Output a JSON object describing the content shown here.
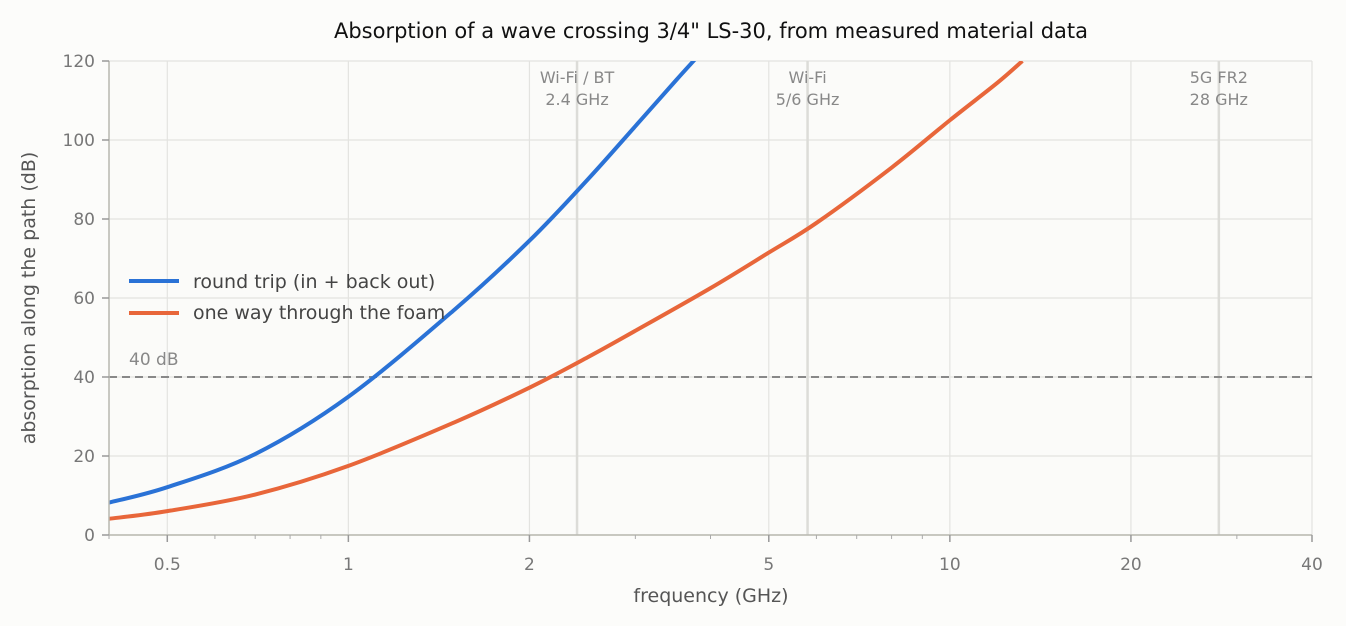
{
  "chart_data": {
    "type": "line",
    "title": "Absorption of a wave crossing 3/4\" LS-30, from measured material data",
    "xlabel": "frequency (GHz)",
    "ylabel": "absorption along the path (dB)",
    "x_scale": "log",
    "xlim": [
      0.4,
      40
    ],
    "ylim": [
      0,
      120
    ],
    "x_ticks": [
      0.5,
      1,
      2,
      5,
      10,
      20,
      40
    ],
    "x_tick_labels": [
      "0.5",
      "1",
      "2",
      "5",
      "10",
      "20",
      "40"
    ],
    "y_ticks": [
      0,
      20,
      40,
      60,
      80,
      100,
      120
    ],
    "y_tick_labels": [
      "0",
      "20",
      "40",
      "60",
      "80",
      "100",
      "120"
    ],
    "grid": true,
    "legend_position": "center-left",
    "threshold": {
      "value": 40,
      "label": "40 dB"
    },
    "bands": [
      {
        "x": 2.4,
        "label_line1": "Wi-Fi / BT",
        "label_line2": "2.4 GHz"
      },
      {
        "x": 5.8,
        "label_line1": "Wi-Fi",
        "label_line2": "5/6 GHz"
      },
      {
        "x": 28,
        "label_line1": "5G FR2",
        "label_line2": "28 GHz"
      }
    ],
    "series": [
      {
        "name": "round trip (in + back out)",
        "color": "#2a72d6",
        "x": [
          0.4,
          0.5,
          0.7,
          1,
          1.5,
          2,
          2.5,
          3,
          3.5,
          3.8
        ],
        "y": [
          8.2,
          12.1,
          20.5,
          35,
          57,
          74.5,
          90,
          103.5,
          115,
          121
        ]
      },
      {
        "name": "one way through the foam",
        "color": "#e8663a",
        "x": [
          0.4,
          0.5,
          0.7,
          1,
          1.5,
          2,
          2.5,
          3,
          4,
          5,
          6,
          8,
          10,
          12,
          13.2
        ],
        "y": [
          4.1,
          6.05,
          10.25,
          17.5,
          28.5,
          37.3,
          45,
          51.7,
          62.5,
          71.5,
          79,
          93,
          105,
          114.5,
          120
        ]
      }
    ]
  }
}
